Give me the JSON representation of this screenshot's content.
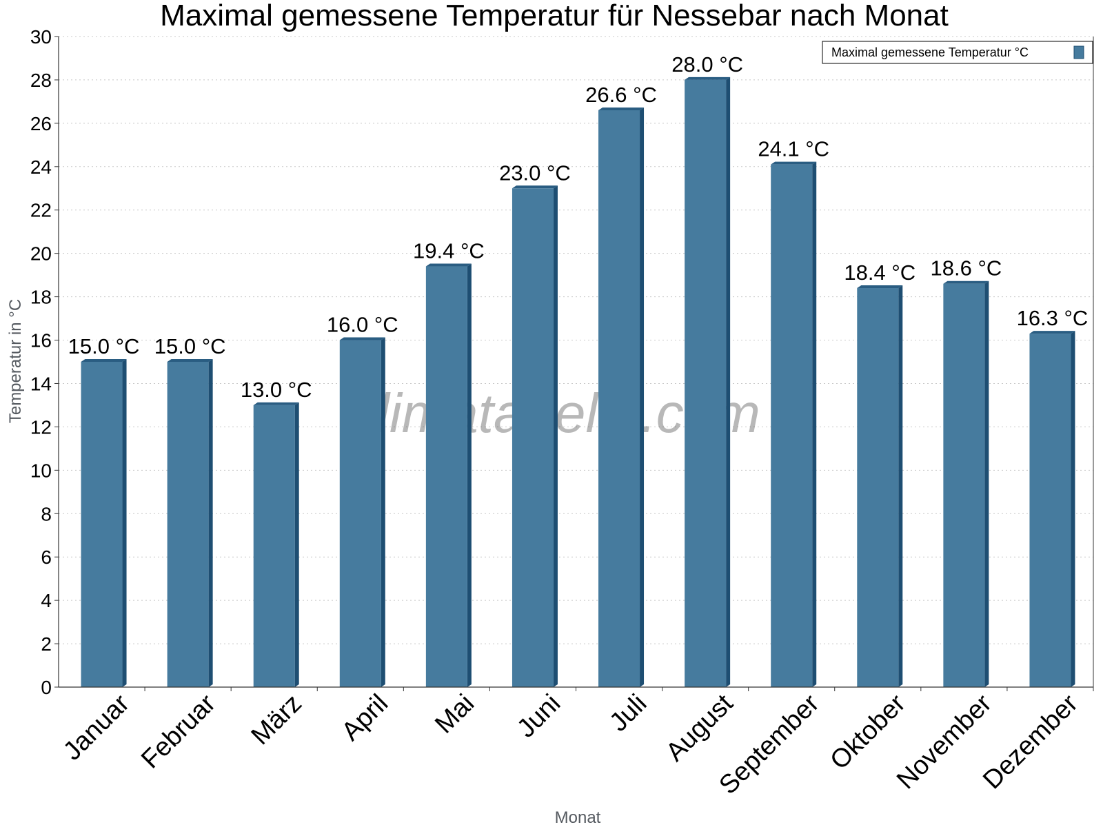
{
  "watermark": "klimatabelle.com",
  "colors": {
    "bar_front": "#467b9e",
    "bar_side": "#1e4e72",
    "bar_top": "#2a5d82",
    "grid": "#c8c8c8",
    "axis": "#333333"
  },
  "chart_data": {
    "type": "bar",
    "title": "Maximal gemessene Temperatur für Nessebar nach Monat",
    "xlabel": "Monat",
    "ylabel": "Temperatur in °C",
    "ylim": [
      0,
      30
    ],
    "ytick_step": 2,
    "grid": true,
    "legend_position": "top-right",
    "categories": [
      "Januar",
      "Februar",
      "März",
      "April",
      "Mai",
      "Juni",
      "Juli",
      "August",
      "September",
      "Oktober",
      "November",
      "Dezember"
    ],
    "series": [
      {
        "name": "Maximal gemessene Temperatur °C",
        "values": [
          15.0,
          15.0,
          13.0,
          16.0,
          19.4,
          23.0,
          26.6,
          28.0,
          24.1,
          18.4,
          18.6,
          16.3
        ],
        "value_labels": [
          "15.0 °C",
          "15.0 °C",
          "13.0 °C",
          "16.0 °C",
          "19.4 °C",
          "23.0 °C",
          "26.6 °C",
          "28.0 °C",
          "24.1 °C",
          "18.4 °C",
          "18.6 °C",
          "16.3 °C"
        ]
      }
    ]
  }
}
